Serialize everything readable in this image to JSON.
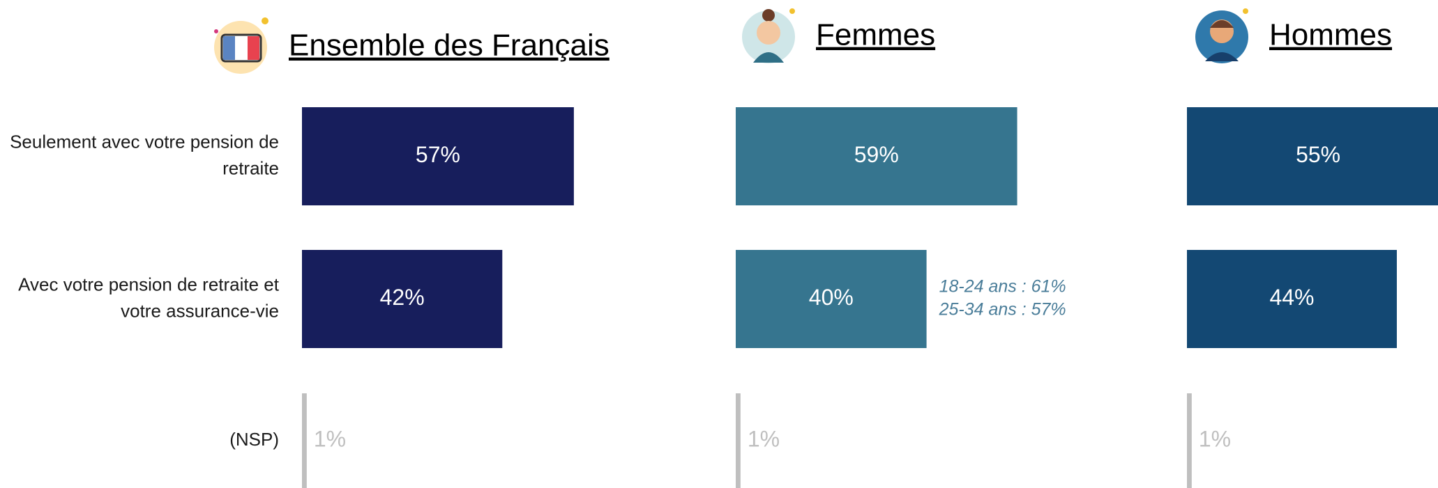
{
  "chart_data": [
    {
      "type": "bar",
      "title": "Ensemble des Français",
      "categories": [
        "Seulement avec votre pension de retraite",
        "Avec votre pension de retraite et votre assurance-vie",
        "(NSP)"
      ],
      "values": [
        57,
        42,
        1
      ],
      "value_labels": [
        "57%",
        "42%",
        "1%"
      ],
      "colors": [
        "#171e5c",
        "#171e5c",
        "#bfbfbf"
      ]
    },
    {
      "type": "bar",
      "title": "Femmes",
      "values": [
        59,
        40,
        1
      ],
      "value_labels": [
        "59%",
        "40%",
        "1%"
      ],
      "colors": [
        "#36758f",
        "#36758f",
        "#bfbfbf"
      ],
      "annotations": [
        "18-24 ans : 61%",
        "25-34 ans : 57%"
      ],
      "annotation_color": "#4a7d99"
    },
    {
      "type": "bar",
      "title": "Hommes",
      "values": [
        55,
        44,
        1
      ],
      "value_labels": [
        "55%",
        "44%",
        "1%"
      ],
      "colors": [
        "#134873",
        "#134873",
        "#bfbfbf"
      ]
    }
  ]
}
